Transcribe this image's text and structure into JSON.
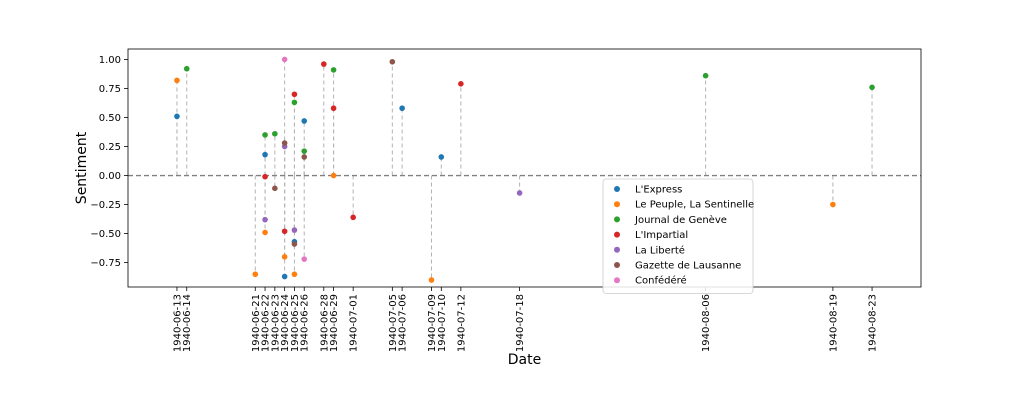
{
  "chart_data": {
    "type": "scatter",
    "xlabel": "Date",
    "ylabel": "Sentiment",
    "ylim": [
      -0.96,
      1.09
    ],
    "yticks": [
      -0.75,
      -0.5,
      -0.25,
      0.0,
      0.25,
      0.5,
      0.75,
      1.0
    ],
    "ytick_labels": [
      "−0.75",
      "−0.50",
      "−0.25",
      "0.00",
      "0.25",
      "0.50",
      "0.75",
      "1.00"
    ],
    "xlim": [
      "1940-06-08",
      "1940-08-28"
    ],
    "xticks": [
      "1940-06-13",
      "1940-06-14",
      "1940-06-21",
      "1940-06-22",
      "1940-06-23",
      "1940-06-24",
      "1940-06-25",
      "1940-06-26",
      "1940-06-28",
      "1940-06-29",
      "1940-07-01",
      "1940-07-05",
      "1940-07-06",
      "1940-07-09",
      "1940-07-10",
      "1940-07-12",
      "1940-07-18",
      "1940-08-06",
      "1940-08-19",
      "1940-08-23"
    ],
    "zero_line": true,
    "legend_position": "lower-right",
    "series": [
      {
        "name": "L'Express",
        "color": "#1f77b4",
        "points": [
          [
            "1940-06-13",
            0.51
          ],
          [
            "1940-06-22",
            0.18
          ],
          [
            "1940-06-24",
            -0.87
          ],
          [
            "1940-06-25",
            -0.57
          ],
          [
            "1940-06-26",
            0.47
          ],
          [
            "1940-07-06",
            0.58
          ],
          [
            "1940-07-10",
            0.16
          ]
        ]
      },
      {
        "name": "Le Peuple, La Sentinelle",
        "color": "#ff7f0e",
        "points": [
          [
            "1940-06-13",
            0.82
          ],
          [
            "1940-06-21",
            -0.85
          ],
          [
            "1940-06-22",
            -0.49
          ],
          [
            "1940-06-24",
            -0.7
          ],
          [
            "1940-06-25",
            -0.85
          ],
          [
            "1940-06-29",
            0.0
          ],
          [
            "1940-07-09",
            -0.9
          ],
          [
            "1940-08-19",
            -0.25
          ]
        ]
      },
      {
        "name": "Journal de Genève",
        "color": "#2ca02c",
        "points": [
          [
            "1940-06-14",
            0.92
          ],
          [
            "1940-06-22",
            0.35
          ],
          [
            "1940-06-23",
            0.36
          ],
          [
            "1940-06-25",
            0.63
          ],
          [
            "1940-06-26",
            0.21
          ],
          [
            "1940-06-29",
            0.91
          ],
          [
            "1940-08-06",
            0.86
          ],
          [
            "1940-08-23",
            0.76
          ]
        ]
      },
      {
        "name": "L'Impartial",
        "color": "#d62728",
        "points": [
          [
            "1940-06-22",
            -0.01
          ],
          [
            "1940-06-24",
            -0.48
          ],
          [
            "1940-06-25",
            0.7
          ],
          [
            "1940-06-28",
            0.96
          ],
          [
            "1940-06-29",
            0.58
          ],
          [
            "1940-07-01",
            -0.36
          ],
          [
            "1940-07-12",
            0.79
          ]
        ]
      },
      {
        "name": "La Liberté",
        "color": "#9467bd",
        "points": [
          [
            "1940-06-22",
            -0.38
          ],
          [
            "1940-06-24",
            0.25
          ],
          [
            "1940-06-25",
            -0.47
          ],
          [
            "1940-07-18",
            -0.15
          ]
        ]
      },
      {
        "name": "Gazette de Lausanne",
        "color": "#8c564b",
        "points": [
          [
            "1940-06-23",
            -0.11
          ],
          [
            "1940-06-24",
            0.28
          ],
          [
            "1940-06-25",
            -0.59
          ],
          [
            "1940-06-26",
            0.16
          ],
          [
            "1940-07-05",
            0.98
          ]
        ]
      },
      {
        "name": "Confédéré",
        "color": "#e377c2",
        "points": [
          [
            "1940-06-24",
            1.0
          ],
          [
            "1940-06-26",
            -0.72
          ]
        ]
      }
    ]
  }
}
